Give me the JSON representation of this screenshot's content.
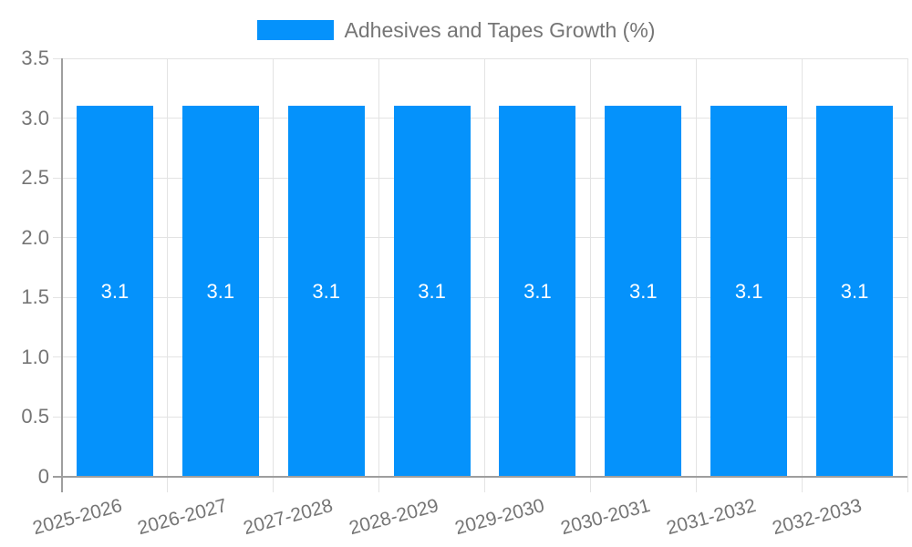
{
  "chart_data": {
    "type": "bar",
    "title": "Adhesives and Tapes Growth (%)",
    "legend": {
      "label": "Adhesives and Tapes Growth (%)",
      "position": "top"
    },
    "categories": [
      "2025-2026",
      "2026-2027",
      "2027-2028",
      "2028-2029",
      "2029-2030",
      "2030-2031",
      "2031-2032",
      "2032-2033"
    ],
    "series": [
      {
        "name": "Adhesives and Tapes Growth (%)",
        "values": [
          3.1,
          3.1,
          3.1,
          3.1,
          3.1,
          3.1,
          3.1,
          3.1
        ]
      }
    ],
    "value_labels": [
      "3.1",
      "3.1",
      "3.1",
      "3.1",
      "3.1",
      "3.1",
      "3.1",
      "3.1"
    ],
    "xlabel": "",
    "ylabel": "",
    "ylim": [
      0,
      3.5
    ],
    "ytick_values": [
      0,
      0.5,
      1.0,
      1.5,
      2.0,
      2.5,
      3.0,
      3.5
    ],
    "ytick_labels": [
      "0",
      "0.5",
      "1.0",
      "1.5",
      "2.0",
      "2.5",
      "3.0",
      "3.5"
    ],
    "grid": true,
    "x_label_rotation_deg": -15,
    "colors": {
      "bar": "#0592fb",
      "gridline": "#e3e3e3",
      "axis": "#9e9e9e",
      "tick_text": "#757575",
      "value_label": "#ffffff",
      "background": "#ffffff"
    }
  }
}
